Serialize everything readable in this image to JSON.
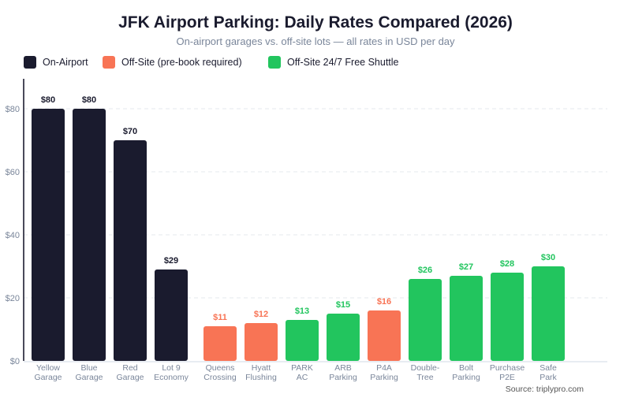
{
  "chart_data": {
    "type": "bar",
    "title": "JFK Airport Parking: Daily Rates Compared (2026)",
    "subtitle": "On-airport garages vs. off-site lots — all rates in USD per day",
    "legend": [
      {
        "name": "On-Airport",
        "color": "#1a1b2e"
      },
      {
        "name": "Off-Site (pre-book required)",
        "color": "#f87455"
      },
      {
        "name": "Off-Site 24/7 Free Shuttle",
        "color": "#22c55e"
      }
    ],
    "legend_position": "top-left",
    "categories": [
      "Yellow Garage",
      "Blue Garage",
      "Red Garage",
      "Lot 9 Economy",
      "Queens Crossing",
      "Hyatt Flushing",
      "PARK AC",
      "ARB Parking",
      "P4A Parking",
      "Double-Tree",
      "Bolt Parking",
      "Purchase P2E",
      "Safe Park"
    ],
    "category_lines": [
      [
        "Yellow",
        "Garage"
      ],
      [
        "Blue",
        "Garage"
      ],
      [
        "Red",
        "Garage"
      ],
      [
        "Lot 9",
        "Economy"
      ],
      [
        "Queens",
        "Crossing"
      ],
      [
        "Hyatt",
        "Flushing"
      ],
      [
        "PARK",
        "AC"
      ],
      [
        "ARB",
        "Parking"
      ],
      [
        "P4A",
        "Parking"
      ],
      [
        "Double-",
        "Tree"
      ],
      [
        "Bolt",
        "Parking"
      ],
      [
        "Purchase",
        "P2E"
      ],
      [
        "Safe",
        "Park"
      ]
    ],
    "values": [
      80,
      80,
      70,
      29,
      11,
      12,
      13,
      15,
      16,
      26,
      27,
      28,
      30
    ],
    "groups": [
      0,
      0,
      0,
      0,
      1,
      1,
      2,
      2,
      1,
      2,
      2,
      2,
      2
    ],
    "data_labels": [
      "$80",
      "$80",
      "$70",
      "$29",
      "$11",
      "$12",
      "$13",
      "$15",
      "$16",
      "$26",
      "$27",
      "$28",
      "$30"
    ],
    "yticks": [
      0,
      20,
      40,
      60,
      80
    ],
    "ytick_labels": [
      "$0",
      "$20",
      "$40",
      "$60",
      "$80"
    ],
    "ylim": [
      0,
      90
    ],
    "grid": true
  },
  "source": "Source: triplypro.com"
}
